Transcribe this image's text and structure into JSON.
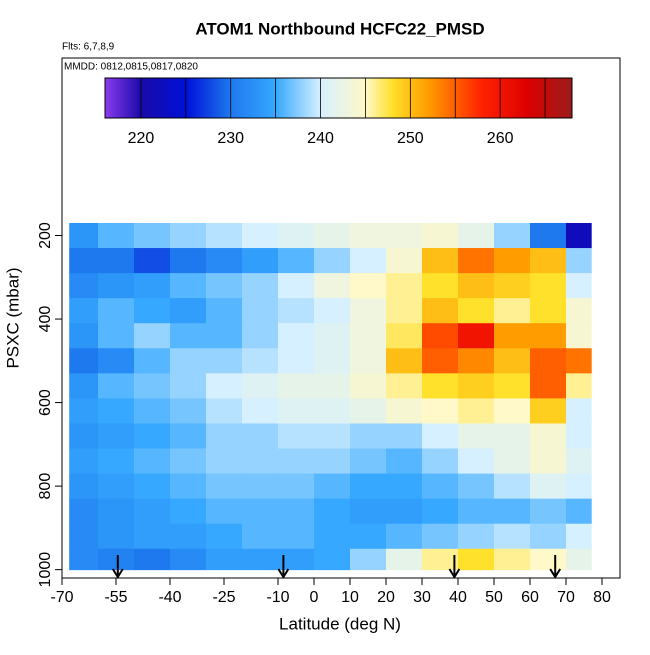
{
  "chart_data": {
    "type": "heatmap",
    "title": "ATOM1 Northbound HCFC22_PMSD",
    "subtitle": "Flts: 6,7,8,9",
    "annotation": "MMDD: 0812,0815,0817,0820",
    "xlabel": "Latitude (deg N)",
    "ylabel": "PSXC (mbar)",
    "xlim": [
      -70,
      85
    ],
    "ylim": [
      1020,
      -225
    ],
    "xticks": [
      -70,
      -55,
      -40,
      -25,
      -10,
      0,
      10,
      20,
      30,
      40,
      50,
      60,
      70,
      80
    ],
    "yticks": [
      200,
      400,
      600,
      800,
      1000
    ],
    "x_edges": [
      -68,
      -60,
      -50,
      -40,
      -30,
      -20,
      -10,
      0,
      10,
      20,
      30,
      40,
      50,
      60,
      70,
      77
    ],
    "y_edges": [
      170,
      230,
      290,
      350,
      410,
      470,
      530,
      590,
      650,
      710,
      770,
      830,
      890,
      950,
      1000
    ],
    "values": [
      [
        233,
        236,
        237,
        238,
        239,
        240,
        241,
        242,
        243,
        243,
        244,
        242,
        238,
        230,
        222
      ],
      [
        230,
        230,
        228,
        230,
        232,
        234,
        236,
        238,
        240,
        244,
        250,
        254,
        252,
        250,
        238
      ],
      [
        232,
        233,
        234,
        236,
        237,
        238,
        240,
        243,
        245,
        246,
        248,
        250,
        249,
        248,
        240
      ],
      [
        234,
        236,
        235,
        234,
        236,
        238,
        239,
        240,
        243,
        246,
        250,
        248,
        246,
        248,
        244
      ],
      [
        233,
        236,
        238,
        236,
        236,
        238,
        240,
        241,
        243,
        247,
        256,
        260,
        252,
        252,
        244
      ],
      [
        230,
        232,
        236,
        238,
        238,
        239,
        240,
        241,
        243,
        250,
        255,
        253,
        250,
        255,
        254
      ],
      [
        233,
        236,
        237,
        238,
        240,
        241,
        242,
        242,
        244,
        246,
        248,
        249,
        248,
        255,
        246
      ],
      [
        234,
        235,
        236,
        237,
        239,
        240,
        241,
        241,
        242,
        244,
        245,
        246,
        245,
        249,
        240
      ],
      [
        233,
        234,
        235,
        236,
        238,
        238,
        239,
        239,
        238,
        238,
        240,
        242,
        242,
        244,
        240
      ],
      [
        234,
        235,
        236,
        237,
        238,
        238,
        238,
        238,
        237,
        236,
        238,
        240,
        242,
        244,
        241
      ],
      [
        233,
        234,
        235,
        236,
        237,
        237,
        237,
        236,
        235,
        235,
        236,
        237,
        239,
        241,
        240
      ],
      [
        232,
        233,
        234,
        235,
        236,
        236,
        236,
        235,
        234,
        234,
        235,
        236,
        236,
        237,
        236
      ],
      [
        232,
        233,
        234,
        234,
        235,
        236,
        236,
        235,
        235,
        236,
        237,
        238,
        239,
        238,
        240
      ],
      [
        232,
        231,
        230,
        232,
        234,
        234,
        234,
        235,
        238,
        242,
        246,
        248,
        246,
        245,
        242
      ]
    ],
    "arrows_lat": [
      -54.5,
      -8.5,
      39,
      67
    ],
    "colorbar_lim": [
      216,
      268
    ],
    "colorbar_ticks": [
      220,
      230,
      240,
      250,
      260
    ],
    "colorbar_breaks": [
      220,
      225,
      230,
      235,
      240,
      245,
      250,
      255,
      260,
      265
    ],
    "colorscale": {
      "values": [
        216,
        220,
        225,
        230,
        235,
        240,
        245,
        248,
        252,
        258,
        263,
        268
      ],
      "colors": [
        "#8a3cf0",
        "#1a0aa8",
        "#0010d8",
        "#1e78ee",
        "#36a8ff",
        "#d6f0ff",
        "#fff8c8",
        "#ffe02a",
        "#ff9c00",
        "#ff2200",
        "#dd0000",
        "#9a1c1c"
      ]
    }
  }
}
